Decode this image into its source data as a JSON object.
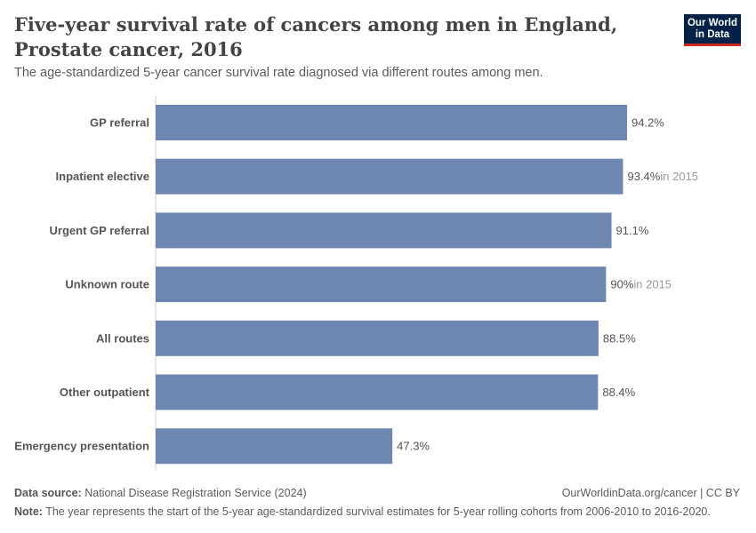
{
  "header": {
    "title": "Five-year survival rate of cancers among men in England, Prostate cancer, 2016",
    "subtitle": "The age-standardized 5-year cancer survival rate diagnosed via different routes among men.",
    "logo": "Our World in Data"
  },
  "chart_data": {
    "type": "bar",
    "orientation": "horizontal",
    "unit": "%",
    "bar_color": "#6d87b0",
    "xlim": [
      0,
      100
    ],
    "categories": [
      "GP referral",
      "Inpatient elective",
      "Urgent GP referral",
      "Unknown route",
      "All routes",
      "Other outpatient",
      "Emergency presentation"
    ],
    "values": [
      94.2,
      93.4,
      91.1,
      90,
      88.5,
      88.4,
      47.3
    ],
    "labels": [
      "94.2%",
      "93.4%",
      "91.1%",
      "90%",
      "88.5%",
      "88.4%",
      "47.3%"
    ],
    "annotations": [
      "",
      "in 2015",
      "",
      "in 2015",
      "",
      "",
      ""
    ]
  },
  "footer": {
    "source_label": "Data source:",
    "source": "National Disease Registration Service (2024)",
    "url": "OurWorldinData.org/cancer | CC BY",
    "note_label": "Note:",
    "note": "The year represents the start of the 5-year age-standardized survival estimates for 5-year rolling cohorts from 2006-2010 to 2016-2020."
  }
}
